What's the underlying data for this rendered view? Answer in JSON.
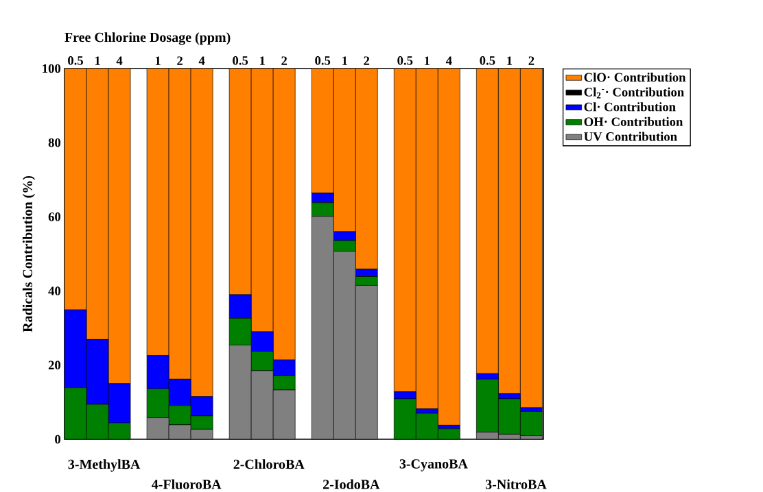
{
  "chart_data": {
    "type": "bar",
    "stacked": true,
    "xlabel": "Free Chlorine Dosage (ppm)",
    "ylabel": "Radicals Contribution (%)",
    "categories": [
      "0.5",
      "1",
      "4",
      "1",
      "2",
      "4",
      "0.5",
      "1",
      "2",
      "0.5",
      "1",
      "2",
      "0.5",
      "1",
      "4",
      "0.5",
      "1",
      "2"
    ],
    "series": [
      {
        "name": "UV Contribution",
        "color": "#808080",
        "values": [
          0,
          0,
          0,
          5.8,
          3.9,
          2.7,
          25.4,
          18.5,
          13.3,
          60.1,
          50.7,
          41.5,
          0,
          0,
          0,
          1.9,
          1.3,
          1.0
        ]
      },
      {
        "name": "OH· Contribution",
        "color": "#008000",
        "values": [
          13.9,
          9.4,
          4.4,
          7.8,
          5.2,
          3.6,
          7.2,
          5.2,
          3.8,
          3.7,
          2.9,
          2.4,
          10.9,
          7.0,
          2.8,
          14.3,
          9.6,
          6.5
        ]
      },
      {
        "name": "Cl· Contribution",
        "color": "#0000ff",
        "values": [
          21.0,
          17.5,
          10.6,
          9.0,
          7.1,
          5.2,
          6.4,
          5.3,
          4.3,
          2.6,
          2.4,
          2.0,
          1.9,
          1.2,
          1.0,
          1.5,
          1.4,
          1.0
        ]
      },
      {
        "name": "Cl$_{2}$$^{-}$· Contribution",
        "color": "#000000",
        "values": [
          0,
          0,
          0,
          0,
          0,
          0,
          0,
          0,
          0,
          0,
          0,
          0,
          0,
          0,
          0,
          0,
          0,
          0
        ]
      },
      {
        "name": "ClO· Contribution",
        "color": "#ff8000",
        "values": [
          65.1,
          73.1,
          85.0,
          77.4,
          83.8,
          88.5,
          61.0,
          71.0,
          78.6,
          33.6,
          44.0,
          54.1,
          87.2,
          91.8,
          96.2,
          82.3,
          87.7,
          91.5
        ]
      }
    ],
    "annotations": [
      "3-MethylBA",
      "4-FluoroBA",
      "2-ChloroBA",
      "2-IodoBA",
      "3-CyanoBA",
      "3-NitroBA"
    ],
    "ylim": [
      0,
      100
    ],
    "yticks": [
      0,
      20,
      40,
      60,
      80,
      100
    ],
    "legend": "top right",
    "grid": false
  }
}
